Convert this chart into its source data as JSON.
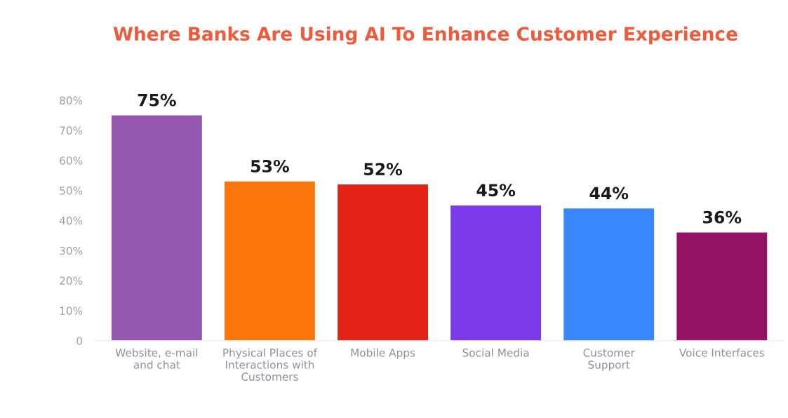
{
  "chart_data": {
    "type": "bar",
    "title": "Where Banks Are Using AI To Enhance Customer Experience",
    "categories": [
      "Website, e-mail\nand chat",
      "Physical Places of\nInteractions with\nCustomers",
      "Mobile Apps",
      "Social Media",
      "Customer\nSupport",
      "Voice Interfaces"
    ],
    "values": [
      75,
      53,
      52,
      45,
      44,
      36
    ],
    "colors": [
      "#9656b0",
      "#fa760c",
      "#e32314",
      "#7b3be8",
      "#3a86fc",
      "#951164"
    ],
    "value_labels": [
      "75%",
      "53%",
      "52%",
      "45%",
      "44%",
      "36%"
    ],
    "ylim": [
      0,
      80
    ],
    "yticks": [
      {
        "value": 0,
        "label": "0"
      },
      {
        "value": 10,
        "label": "10%"
      },
      {
        "value": 20,
        "label": "20%"
      },
      {
        "value": 30,
        "label": "30%"
      },
      {
        "value": 40,
        "label": "40%"
      },
      {
        "value": 50,
        "label": "50%"
      },
      {
        "value": 60,
        "label": "60%"
      },
      {
        "value": 70,
        "label": "70%"
      },
      {
        "value": 80,
        "label": "80%"
      }
    ],
    "grid": false,
    "legend": false
  }
}
